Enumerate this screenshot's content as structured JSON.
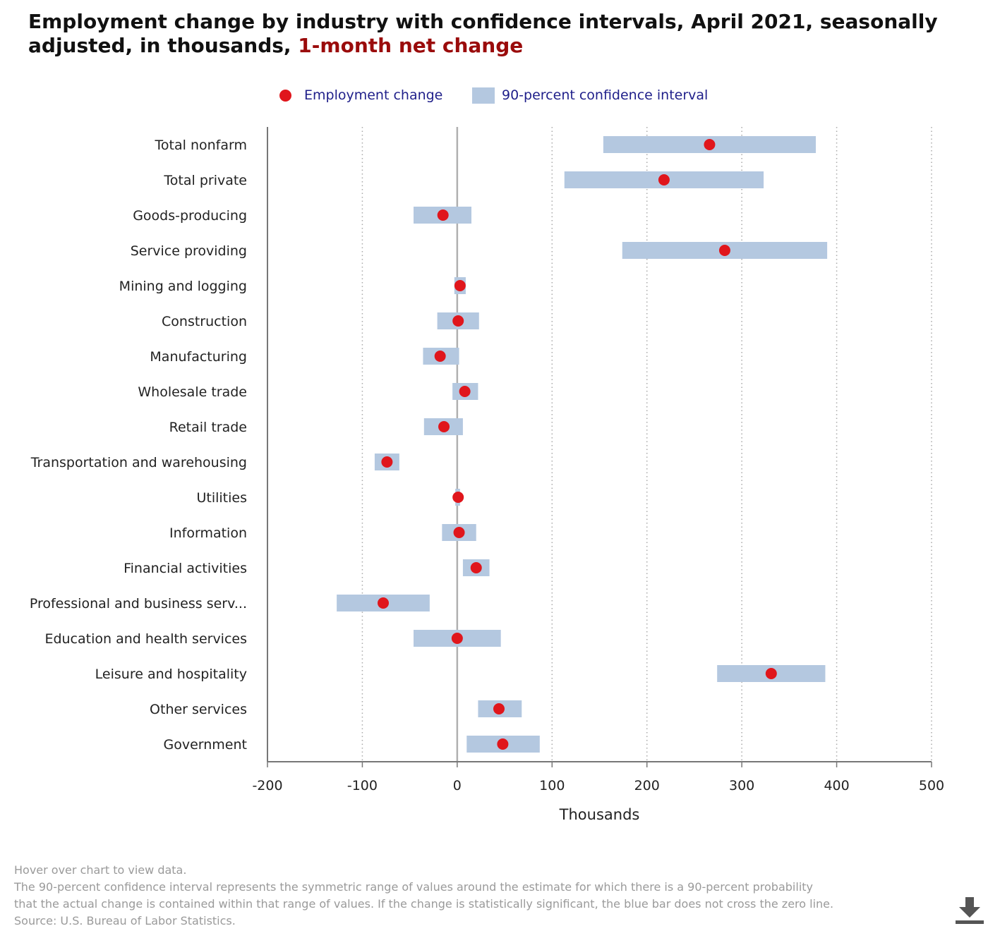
{
  "title": {
    "main": "Employment change by industry with confidence intervals, April 2021, seasonally adjusted, in thousands,",
    "accent": "1-month net change"
  },
  "legend": {
    "point_label": "Employment change",
    "interval_label": "90-percent confidence interval"
  },
  "colors": {
    "point": "#e0161c",
    "interval": "#b4c8e0",
    "title_accent": "#9a0b0b",
    "legend_text": "#1f1f8a",
    "footnote_text": "#9a9a9a"
  },
  "chart_data": {
    "type": "scatter",
    "orientation": "horizontal",
    "xlabel": "Thousands",
    "xlim": [
      -200,
      500
    ],
    "xticks": [
      -200,
      -100,
      0,
      100,
      200,
      300,
      400,
      500
    ],
    "grid": "vertical dotted",
    "legend_position": "top",
    "categories": [
      "Total nonfarm",
      "Total private",
      "Goods-producing",
      "Service providing",
      "Mining and logging",
      "Construction",
      "Manufacturing",
      "Wholesale trade",
      "Retail trade",
      "Transportation and warehousing",
      "Utilities",
      "Information",
      "Financial activities",
      "Professional and business serv...",
      "Education and health services",
      "Leisure and hospitality",
      "Other services",
      "Government"
    ],
    "series": [
      {
        "name": "Employment change",
        "values": [
          266,
          218,
          -15,
          282,
          3,
          1,
          -18,
          8,
          -14,
          -74,
          1,
          2,
          20,
          -78,
          0,
          331,
          44,
          48
        ]
      },
      {
        "name": "90-percent confidence interval",
        "low": [
          154,
          113,
          -46,
          174,
          -3,
          -21,
          -36,
          -5,
          -35,
          -87,
          -2,
          -16,
          6,
          -127,
          -46,
          274,
          22,
          10
        ],
        "high": [
          378,
          323,
          15,
          390,
          9,
          23,
          2,
          22,
          6,
          -61,
          3,
          20,
          34,
          -29,
          46,
          388,
          68,
          87
        ]
      }
    ]
  },
  "footnotes": {
    "hover": "Hover over chart to view data.",
    "note_line1": "The 90-percent confidence interval represents the symmetric range of values around the estimate for which there is a 90-percent probability",
    "note_line2": "that the actual change is contained within that range of values. If the change is statistically significant, the blue bar does not cross the zero line.",
    "source": "Source: U.S. Bureau of Labor Statistics."
  }
}
